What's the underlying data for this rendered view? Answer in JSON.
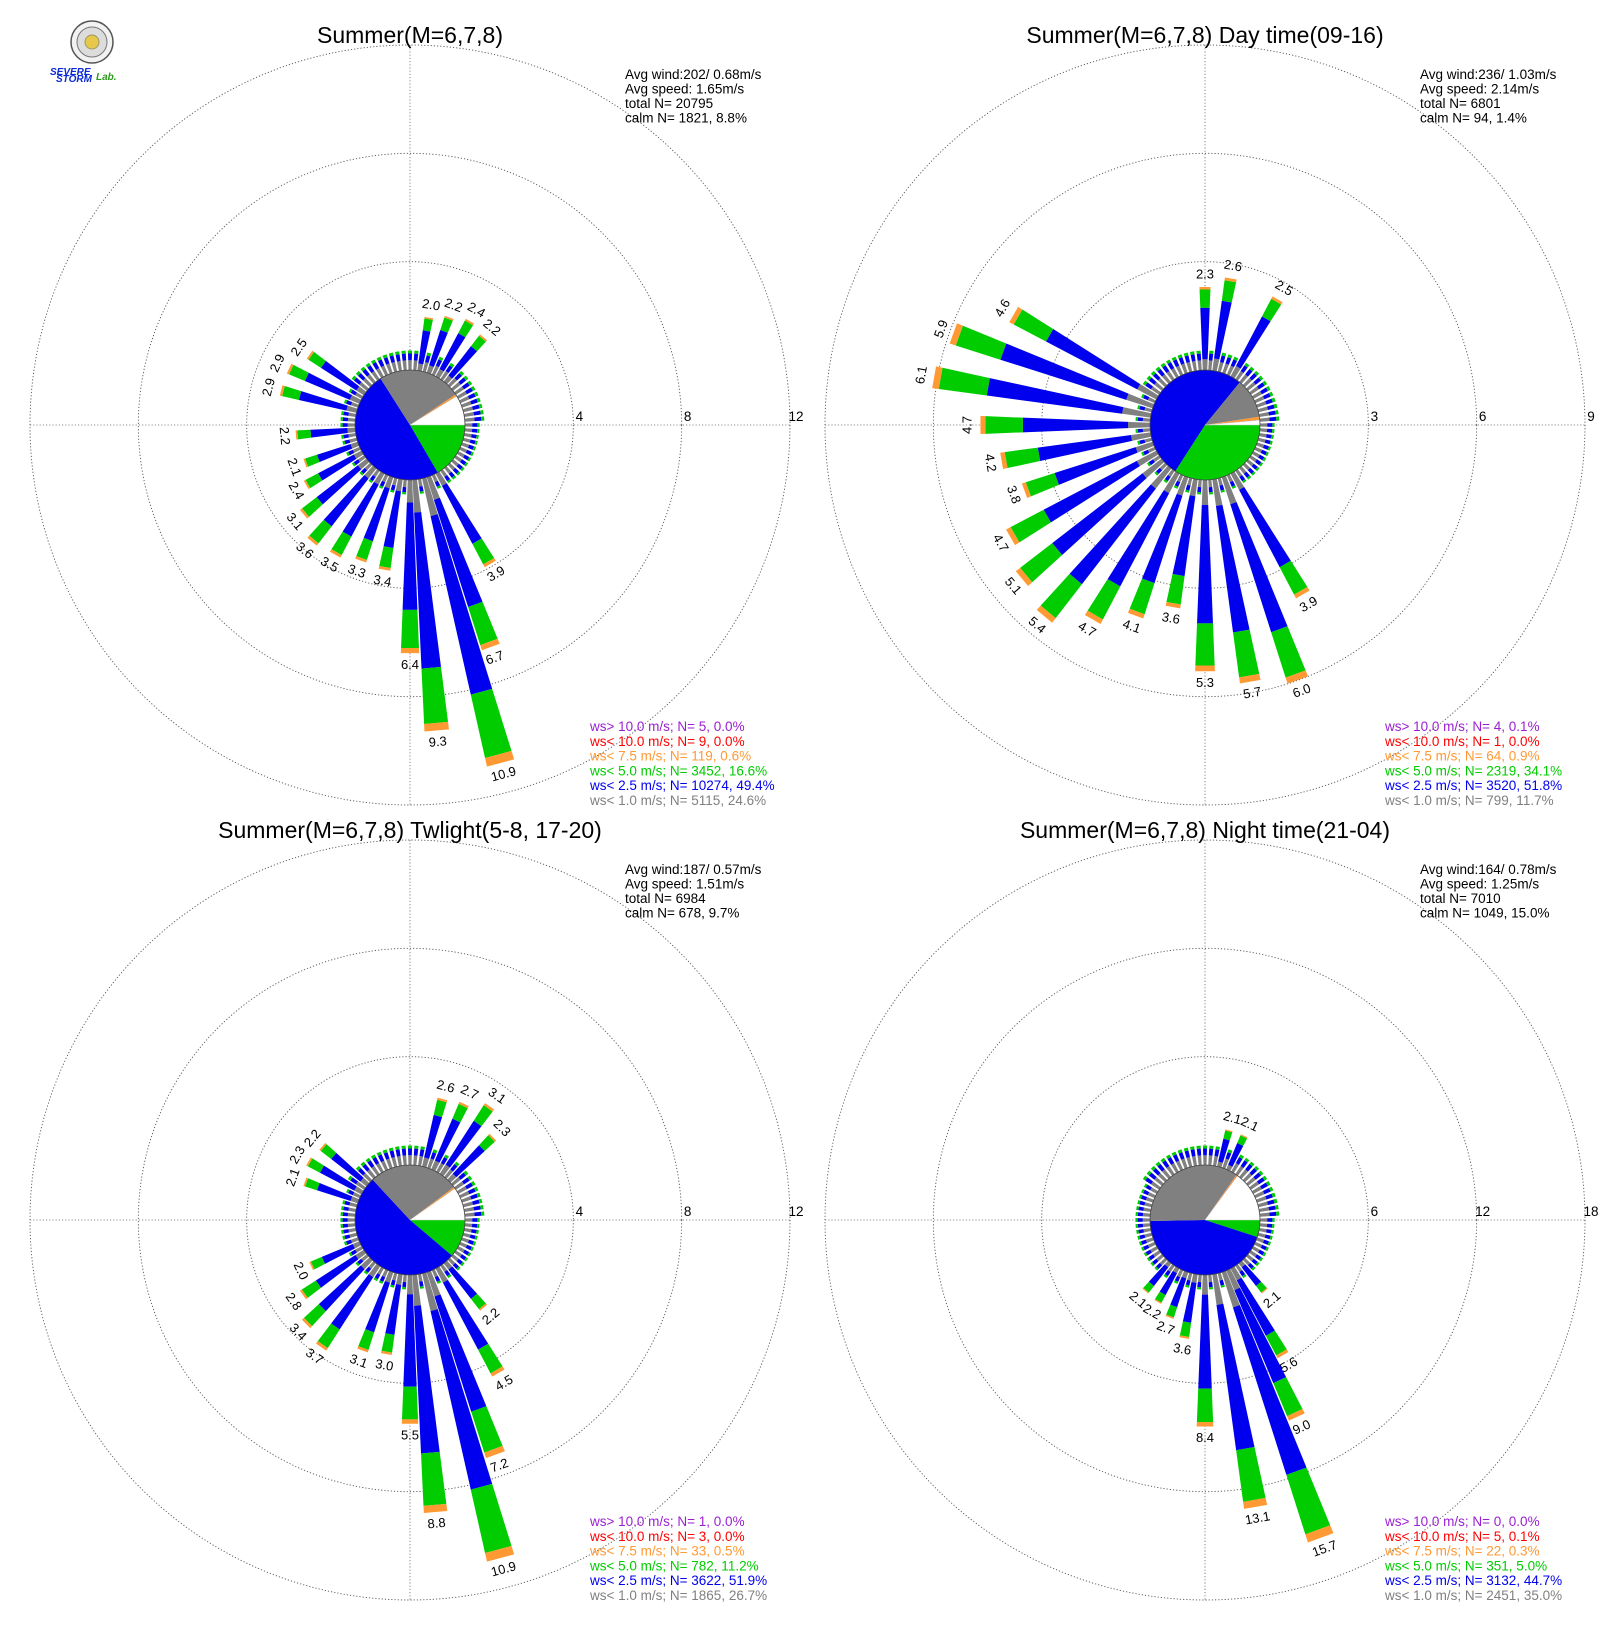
{
  "logo": {
    "text_severe": "SEVERE",
    "text_storm": "STORM",
    "text_lab": "Lab."
  },
  "colors": {
    "gt10": "#9b1fd1",
    "lt10": "#ff0000",
    "lt7_5": "#ff9933",
    "lt5": "#00cc00",
    "lt2_5": "#0000ee",
    "lt1": "#808080"
  },
  "chart_data": [
    {
      "type": "polar-bar (wind rose)",
      "title": "Summer(M=6,7,8)",
      "rlim": [
        0,
        12
      ],
      "rticks": [
        "4",
        "8",
        "12"
      ],
      "info": [
        "Avg wind:202/ 0.68m/s",
        "Avg speed: 1.65m/s",
        "total N=      20795",
        "calm N=   1821,   8.8%"
      ],
      "legend": [
        {
          "key": "gt10",
          "text": "ws> 10.0 m/s; N=     5,  0.0%"
        },
        {
          "key": "lt10",
          "text": "ws< 10.0 m/s; N=     9,  0.0%"
        },
        {
          "key": "lt7_5",
          "text": "ws<  7.5 m/s; N=   119,  0.6%"
        },
        {
          "key": "lt5",
          "text": "ws<  5.0 m/s; N=  3452, 16.6%"
        },
        {
          "key": "lt2_5",
          "text": "ws<  2.5 m/s; N= 10274, 49.4%"
        },
        {
          "key": "lt1",
          "text": "ws<  1.0 m/s; N=  5115, 24.6%"
        }
      ],
      "calm_pie_pct": {
        "lt1": 24.6,
        "lt2_5": 49.4,
        "lt5": 16.6,
        "lt7_5": 0.6,
        "lt10": 0.0,
        "gt10": 0.0
      },
      "labeled_bars": [
        {
          "dir_deg": 10,
          "total": 2.0,
          "label": "2.0"
        },
        {
          "dir_deg": 20,
          "total": 2.2,
          "label": "2.2"
        },
        {
          "dir_deg": 30,
          "total": 2.4,
          "label": "2.4"
        },
        {
          "dir_deg": 40,
          "total": 2.2,
          "label": "2.2"
        },
        {
          "dir_deg": 150,
          "total": 3.9,
          "label": "3.9"
        },
        {
          "dir_deg": 160,
          "total": 6.7,
          "label": "6.7"
        },
        {
          "dir_deg": 165,
          "total": 10.9,
          "label": "10.9"
        },
        {
          "dir_deg": 175,
          "total": 9.3,
          "label": "9.3"
        },
        {
          "dir_deg": 180,
          "total": 6.4,
          "label": "6.4"
        },
        {
          "dir_deg": 190,
          "total": 3.4,
          "label": "3.4"
        },
        {
          "dir_deg": 200,
          "total": 3.3,
          "label": "3.3"
        },
        {
          "dir_deg": 210,
          "total": 3.5,
          "label": "3.5"
        },
        {
          "dir_deg": 220,
          "total": 3.6,
          "label": "3.6"
        },
        {
          "dir_deg": 230,
          "total": 3.1,
          "label": "3.1"
        },
        {
          "dir_deg": 240,
          "total": 2.4,
          "label": "2.4"
        },
        {
          "dir_deg": 250,
          "total": 2.1,
          "label": "2.1"
        },
        {
          "dir_deg": 265,
          "total": 2.2,
          "label": "2.2"
        },
        {
          "dir_deg": 285,
          "total": 2.9,
          "label": "2.9"
        },
        {
          "dir_deg": 295,
          "total": 2.9,
          "label": "2.9"
        },
        {
          "dir_deg": 305,
          "total": 2.5,
          "label": "2.5"
        }
      ]
    },
    {
      "type": "polar-bar (wind rose)",
      "title": "Summer(M=6,7,8) Day time(09-16)",
      "rlim": [
        0,
        9
      ],
      "rticks": [
        "3",
        "6",
        "9"
      ],
      "info": [
        "Avg wind:236/ 1.03m/s",
        "Avg speed: 2.14m/s",
        "total N=        6801",
        "calm N=     94,   1.4%"
      ],
      "legend": [
        {
          "key": "gt10",
          "text": "ws> 10.0 m/s; N=     4,  0.1%"
        },
        {
          "key": "lt10",
          "text": "ws< 10.0 m/s; N=     1,  0.0%"
        },
        {
          "key": "lt7_5",
          "text": "ws<  7.5 m/s; N=    64,  0.9%"
        },
        {
          "key": "lt5",
          "text": "ws<  5.0 m/s; N=  2319, 34.1%"
        },
        {
          "key": "lt2_5",
          "text": "ws<  2.5 m/s; N=  3520, 51.8%"
        },
        {
          "key": "lt1",
          "text": "ws<  1.0 m/s; N=   799, 11.7%"
        }
      ],
      "calm_pie_pct": {
        "lt1": 11.7,
        "lt2_5": 51.8,
        "lt5": 34.1,
        "lt7_5": 0.9,
        "lt10": 0.0,
        "gt10": 0.1
      },
      "labeled_bars": [
        {
          "dir_deg": 0,
          "total": 2.3,
          "label": "2.3"
        },
        {
          "dir_deg": 10,
          "total": 2.6,
          "label": "2.6"
        },
        {
          "dir_deg": 30,
          "total": 2.5,
          "label": "2.5"
        },
        {
          "dir_deg": 150,
          "total": 3.9,
          "label": "3.9"
        },
        {
          "dir_deg": 160,
          "total": 6.0,
          "label": "6.0"
        },
        {
          "dir_deg": 170,
          "total": 5.7,
          "label": "5.7"
        },
        {
          "dir_deg": 180,
          "total": 5.3,
          "label": "5.3"
        },
        {
          "dir_deg": 190,
          "total": 3.6,
          "label": "3.6"
        },
        {
          "dir_deg": 200,
          "total": 4.1,
          "label": "4.1"
        },
        {
          "dir_deg": 210,
          "total": 4.7,
          "label": "4.7"
        },
        {
          "dir_deg": 220,
          "total": 5.4,
          "label": "5.4"
        },
        {
          "dir_deg": 230,
          "total": 5.1,
          "label": "5.1"
        },
        {
          "dir_deg": 240,
          "total": 4.7,
          "label": "4.7"
        },
        {
          "dir_deg": 250,
          "total": 3.8,
          "label": "3.8"
        },
        {
          "dir_deg": 260,
          "total": 4.2,
          "label": "4.2"
        },
        {
          "dir_deg": 270,
          "total": 4.7,
          "label": "4.7"
        },
        {
          "dir_deg": 280,
          "total": 6.1,
          "label": "6.1"
        },
        {
          "dir_deg": 290,
          "total": 5.9,
          "label": "5.9"
        },
        {
          "dir_deg": 300,
          "total": 4.6,
          "label": "4.6"
        }
      ]
    },
    {
      "type": "polar-bar (wind rose)",
      "title": "Summer(M=6,7,8) Twlight(5-8, 17-20)",
      "rlim": [
        0,
        12
      ],
      "rticks": [
        "4",
        "8",
        "12"
      ],
      "info": [
        "Avg wind:187/ 0.57m/s",
        "Avg speed: 1.51m/s",
        "total N=        6984",
        "calm N=    678,   9.7%"
      ],
      "legend": [
        {
          "key": "gt10",
          "text": "ws> 10.0 m/s; N=     1,  0.0%"
        },
        {
          "key": "lt10",
          "text": "ws< 10.0 m/s; N=     3,  0.0%"
        },
        {
          "key": "lt7_5",
          "text": "ws<  7.5 m/s; N=    33,  0.5%"
        },
        {
          "key": "lt5",
          "text": "ws<  5.0 m/s; N=   782, 11.2%"
        },
        {
          "key": "lt2_5",
          "text": "ws<  2.5 m/s; N=  3622, 51.9%"
        },
        {
          "key": "lt1",
          "text": "ws<  1.0 m/s; N=  1865, 26.7%"
        }
      ],
      "calm_pie_pct": {
        "lt1": 26.7,
        "lt2_5": 51.9,
        "lt5": 11.2,
        "lt7_5": 0.5,
        "lt10": 0.0,
        "gt10": 0.0
      },
      "labeled_bars": [
        {
          "dir_deg": 15,
          "total": 2.6,
          "label": "2.6"
        },
        {
          "dir_deg": 25,
          "total": 2.7,
          "label": "2.7"
        },
        {
          "dir_deg": 35,
          "total": 3.1,
          "label": "3.1"
        },
        {
          "dir_deg": 45,
          "total": 2.3,
          "label": "2.3"
        },
        {
          "dir_deg": 140,
          "total": 2.2,
          "label": "2.2"
        },
        {
          "dir_deg": 150,
          "total": 4.5,
          "label": "4.5"
        },
        {
          "dir_deg": 160,
          "total": 7.2,
          "label": "7.2"
        },
        {
          "dir_deg": 165,
          "total": 10.9,
          "label": "10.9"
        },
        {
          "dir_deg": 175,
          "total": 8.8,
          "label": "8.8"
        },
        {
          "dir_deg": 180,
          "total": 5.5,
          "label": "5.5"
        },
        {
          "dir_deg": 190,
          "total": 3.0,
          "label": "3.0"
        },
        {
          "dir_deg": 200,
          "total": 3.1,
          "label": "3.1"
        },
        {
          "dir_deg": 215,
          "total": 3.7,
          "label": "3.7"
        },
        {
          "dir_deg": 225,
          "total": 3.4,
          "label": "3.4"
        },
        {
          "dir_deg": 235,
          "total": 2.8,
          "label": "2.8"
        },
        {
          "dir_deg": 245,
          "total": 2.0,
          "label": "2.0"
        },
        {
          "dir_deg": 290,
          "total": 2.1,
          "label": "2.1"
        },
        {
          "dir_deg": 300,
          "total": 2.3,
          "label": "2.3"
        },
        {
          "dir_deg": 310,
          "total": 2.2,
          "label": "2.2"
        }
      ]
    },
    {
      "type": "polar-bar (wind rose)",
      "title": "Summer(M=6,7,8) Night time(21-04)",
      "rlim": [
        0,
        18
      ],
      "rticks": [
        "6",
        "12",
        "18"
      ],
      "info": [
        "Avg wind:164/ 0.78m/s",
        "Avg speed: 1.25m/s",
        "total N=        7010",
        "calm N=   1049,  15.0%"
      ],
      "legend": [
        {
          "key": "gt10",
          "text": "ws> 10.0 m/s; N=     0,  0.0%"
        },
        {
          "key": "lt10",
          "text": "ws< 10.0 m/s; N=     5,  0.1%"
        },
        {
          "key": "lt7_5",
          "text": "ws<  7.5 m/s; N=    22,  0.3%"
        },
        {
          "key": "lt5",
          "text": "ws<  5.0 m/s; N=   351,  5.0%"
        },
        {
          "key": "lt2_5",
          "text": "ws<  2.5 m/s; N=  3132, 44.7%"
        },
        {
          "key": "lt1",
          "text": "ws<  1.0 m/s; N=  2451, 35.0%"
        }
      ],
      "calm_pie_pct": {
        "lt1": 35.0,
        "lt2_5": 44.7,
        "lt5": 5.0,
        "lt7_5": 0.3,
        "lt10": 0.1,
        "gt10": 0.0
      },
      "labeled_bars": [
        {
          "dir_deg": 15,
          "total": 2.1,
          "label": "2.1"
        },
        {
          "dir_deg": 25,
          "total": 2.1,
          "label": "2.1"
        },
        {
          "dir_deg": 140,
          "total": 2.1,
          "label": "2.1"
        },
        {
          "dir_deg": 150,
          "total": 5.6,
          "label": "5.6"
        },
        {
          "dir_deg": 155,
          "total": 9.0,
          "label": "9.0"
        },
        {
          "dir_deg": 160,
          "total": 15.7,
          "label": "15.7"
        },
        {
          "dir_deg": 170,
          "total": 13.1,
          "label": "13.1"
        },
        {
          "dir_deg": 180,
          "total": 8.4,
          "label": "8.4"
        },
        {
          "dir_deg": 190,
          "total": 3.6,
          "label": "3.6"
        },
        {
          "dir_deg": 200,
          "total": 2.7,
          "label": "2.7"
        },
        {
          "dir_deg": 210,
          "total": 2.2,
          "label": "2.2"
        },
        {
          "dir_deg": 220,
          "total": 2.1,
          "label": "2.1"
        }
      ]
    }
  ]
}
